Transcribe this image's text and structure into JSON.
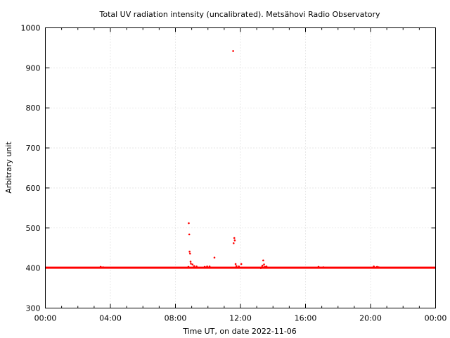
{
  "chart_data": {
    "type": "scatter",
    "title": "Total UV radiation intensity (uncalibrated). Metsähovi Radio Observatory",
    "xlabel": "Time UT, on date 2022-11-06",
    "ylabel": "Arbitrary unit",
    "xlim": [
      0,
      24
    ],
    "ylim": [
      300,
      1000
    ],
    "x_ticks": [
      0,
      4,
      8,
      12,
      16,
      20,
      24
    ],
    "x_tick_labels": [
      "00:00",
      "04:00",
      "08:00",
      "12:00",
      "16:00",
      "20:00",
      "00:00"
    ],
    "y_ticks": [
      300,
      400,
      500,
      600,
      700,
      800,
      900,
      1000
    ],
    "y_tick_labels": [
      "300",
      "400",
      "500",
      "600",
      "700",
      "800",
      "900",
      "1000"
    ],
    "grid": true,
    "color": "#ff0000",
    "baseline": {
      "x_range": [
        0,
        24
      ],
      "y": 401
    },
    "series": [
      {
        "x": [
          3.4,
          3.55,
          8.8,
          8.82,
          8.85,
          8.87,
          8.9,
          8.93,
          8.95,
          9.05,
          9.15,
          9.3,
          9.8,
          9.95,
          10.1,
          10.4,
          11.55,
          11.58,
          11.62,
          11.65,
          11.7,
          11.75,
          11.9,
          12.05,
          13.25,
          13.3,
          13.35,
          13.4,
          13.45,
          13.5,
          13.6,
          16.8,
          17.1,
          20.2,
          20.4,
          20.5
        ],
        "y": [
          403,
          402,
          403,
          512,
          484,
          441,
          436,
          416,
          411,
          409,
          405,
          404,
          403,
          404,
          404,
          426,
          942,
          462,
          475,
          469,
          410,
          405,
          404,
          410,
          400,
          402,
          406,
          419,
          409,
          403,
          404,
          403,
          402,
          404,
          403,
          402
        ]
      }
    ]
  }
}
